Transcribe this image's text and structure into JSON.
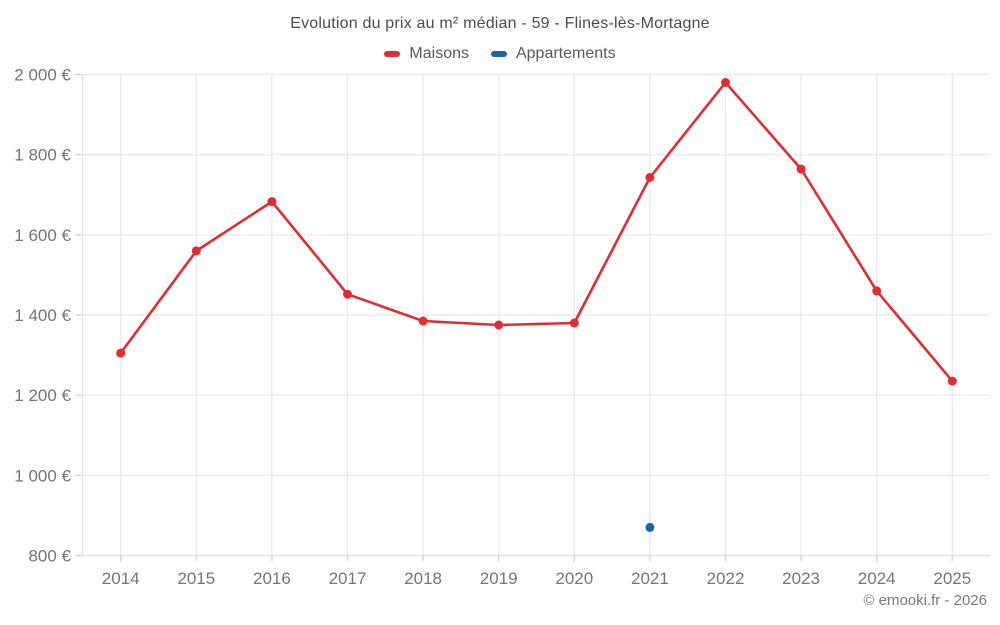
{
  "page": {
    "footer": "© emooki.fr - 2026"
  },
  "chart_data": {
    "type": "line",
    "title": "Evolution du prix au m² médian - 59 - Flines-lès-Mortagne",
    "xlabel": "",
    "ylabel": "",
    "unit": "€",
    "categories": [
      "2014",
      "2015",
      "2016",
      "2017",
      "2018",
      "2019",
      "2020",
      "2021",
      "2022",
      "2023",
      "2024",
      "2025"
    ],
    "series": [
      {
        "name": "Maisons",
        "color": "#dc2e34",
        "values": [
          1305,
          1560,
          1683,
          1452,
          1385,
          1375,
          1380,
          1743,
          1980,
          1764,
          1460,
          1235
        ]
      },
      {
        "name": "Appartements",
        "color": "#17699e",
        "values": [
          null,
          null,
          null,
          null,
          null,
          null,
          null,
          870,
          null,
          null,
          null,
          null
        ]
      }
    ],
    "ylim": [
      800,
      2000
    ],
    "yticks": [
      {
        "value": 800,
        "label": "800 €"
      },
      {
        "value": 1000,
        "label": "1 000 €"
      },
      {
        "value": 1200,
        "label": "1 200 €"
      },
      {
        "value": 1400,
        "label": "1 400 €"
      },
      {
        "value": 1600,
        "label": "1 600 €"
      },
      {
        "value": 1800,
        "label": "1 800 €"
      },
      {
        "value": 2000,
        "label": "2 000 €"
      }
    ],
    "grid": true,
    "legend_position": "top"
  },
  "colors": {
    "background": "#ffffff",
    "grid": "#ebebeb",
    "axis_line": "#e3e3e3",
    "tick": "#d6d6d6",
    "title_text": "#4d4d4d",
    "legend_text": "#595959",
    "axis_text": "#757575",
    "footer_text": "#7a7a7a"
  }
}
